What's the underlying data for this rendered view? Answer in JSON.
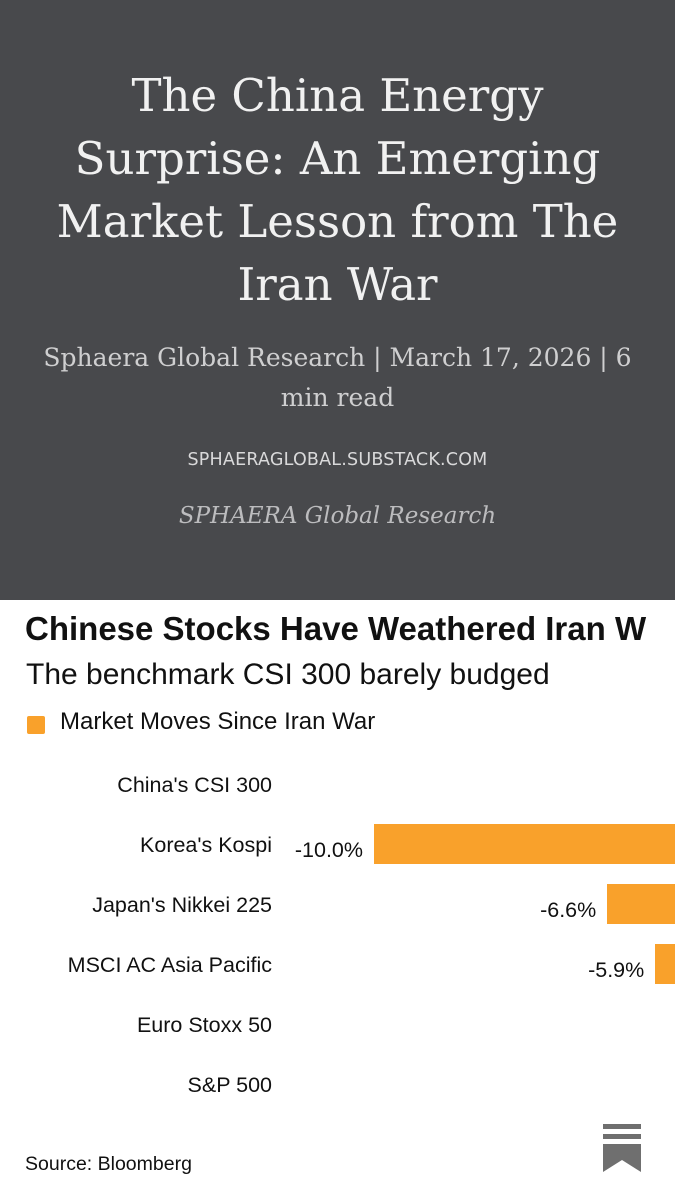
{
  "post": {
    "title": "The China Energy Surprise: An Emerging Market Lesson from The Iran War",
    "byline": "Sphaera Global Research | March 17, 2026 | 6 min read",
    "domain": "SPHAERAGLOBAL.SUBSTACK.COM",
    "publication": "SPHAERA Global Research"
  },
  "colors": {
    "header_background": "#48494c",
    "bar": "#f9a12b"
  },
  "chart_data": {
    "type": "bar",
    "orientation": "horizontal",
    "title": "Chinese Stocks Have Weathered Iran W",
    "subtitle": "The benchmark CSI 300 barely budged",
    "series": [
      {
        "name": "Market Moves Since Iran War",
        "values": [
          null,
          -10.0,
          -6.6,
          -5.9,
          null,
          null
        ],
        "labels": [
          "",
          "-10.0%",
          "-6.6%",
          "-5.9%",
          "",
          ""
        ]
      }
    ],
    "categories": [
      "China's CSI 300",
      "Korea's Kospi",
      "Japan's Nikkei 225",
      "MSCI AC Asia Pacific",
      "Euro Stoxx 50",
      "S&P 500"
    ],
    "source": "Source: Bloomberg",
    "legend": "top-left",
    "grid": false
  },
  "icons": {
    "bookmark": "bookmark-icon"
  }
}
